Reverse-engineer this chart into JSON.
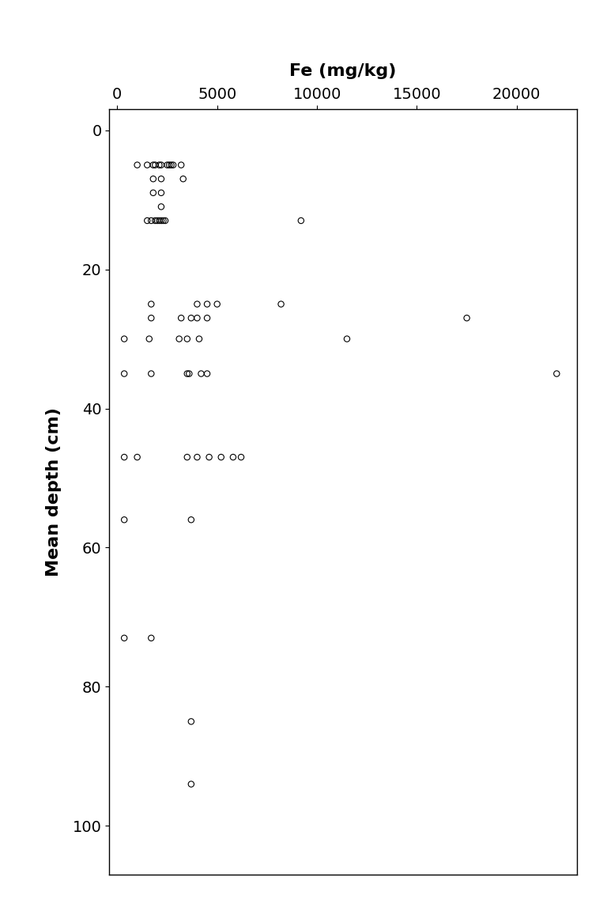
{
  "xlabel": "Fe (mg/kg)",
  "ylabel": "Mean depth (cm)",
  "xlim": [
    -400,
    23000
  ],
  "ylim": [
    107,
    -3
  ],
  "xticks": [
    0,
    5000,
    10000,
    15000,
    20000
  ],
  "yticks": [
    0,
    20,
    40,
    60,
    80,
    100
  ],
  "fe": [
    1000,
    1500,
    1800,
    1900,
    2100,
    2200,
    2500,
    2600,
    2700,
    2800,
    3200,
    1800,
    2200,
    3300,
    1800,
    2200,
    2200,
    1500,
    1700,
    1900,
    2000,
    2100,
    2200,
    2300,
    2400,
    9200,
    1700,
    4000,
    4500,
    5000,
    8200,
    1700,
    3200,
    3700,
    4000,
    4500,
    17500,
    350,
    1600,
    3100,
    3500,
    4100,
    11500,
    350,
    1700,
    3500,
    3600,
    4200,
    4500,
    22000,
    350,
    1000,
    3500,
    4000,
    4600,
    5200,
    5800,
    6200,
    350,
    3700,
    350,
    1700,
    3700,
    3700
  ],
  "depth": [
    5,
    5,
    5,
    5,
    5,
    5,
    5,
    5,
    5,
    5,
    5,
    7,
    7,
    7,
    9,
    9,
    11,
    13,
    13,
    13,
    13,
    13,
    13,
    13,
    13,
    13,
    25,
    25,
    25,
    25,
    25,
    27,
    27,
    27,
    27,
    27,
    27,
    30,
    30,
    30,
    30,
    30,
    30,
    35,
    35,
    35,
    35,
    35,
    35,
    35,
    47,
    47,
    47,
    47,
    47,
    47,
    47,
    47,
    56,
    56,
    73,
    73,
    85,
    94
  ],
  "bg_color": "#ffffff",
  "point_facecolor": "none",
  "point_edgecolor": "#000000",
  "point_size": 28,
  "point_lw": 0.8,
  "xlabel_fontsize": 16,
  "ylabel_fontsize": 16,
  "tick_fontsize": 14
}
